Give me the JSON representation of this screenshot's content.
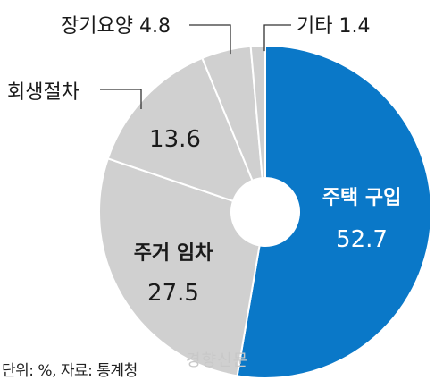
{
  "chart_data": {
    "type": "pie",
    "donut": true,
    "slices": [
      {
        "label": "주택 구입",
        "value": 52.7,
        "value_text": "52.7",
        "color": "#0a78c8"
      },
      {
        "label": "주거 임차",
        "value": 27.5,
        "value_text": "27.5",
        "color": "#d0d0d0"
      },
      {
        "label": "회생절차",
        "value": 13.6,
        "value_text": "13.6",
        "color": "#d0d0d0"
      },
      {
        "label": "장기요양",
        "value": 4.8,
        "value_text": "4.8",
        "color": "#d0d0d0"
      },
      {
        "label": "기타",
        "value": 1.4,
        "value_text": "1.4",
        "color": "#d0d0d0"
      }
    ],
    "unit_note": "단위: %, 자료: 통계청",
    "watermark": "경향신문"
  }
}
